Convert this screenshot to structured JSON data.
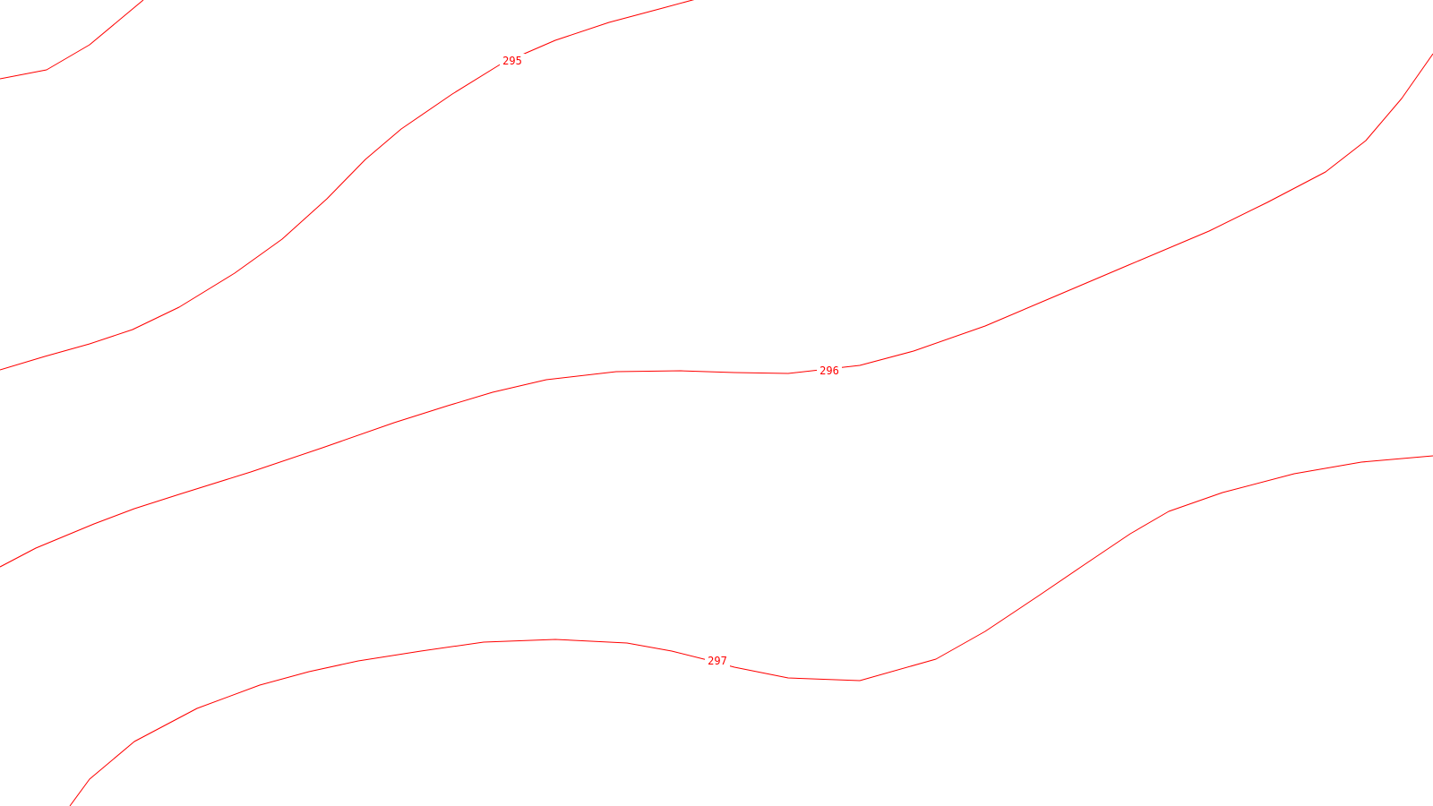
{
  "map": {
    "line_color": "#ff0000",
    "background_color": "#ffffff",
    "contours": [
      {
        "elevation": "295"
      },
      {
        "elevation": "296"
      },
      {
        "elevation": "297"
      }
    ]
  }
}
